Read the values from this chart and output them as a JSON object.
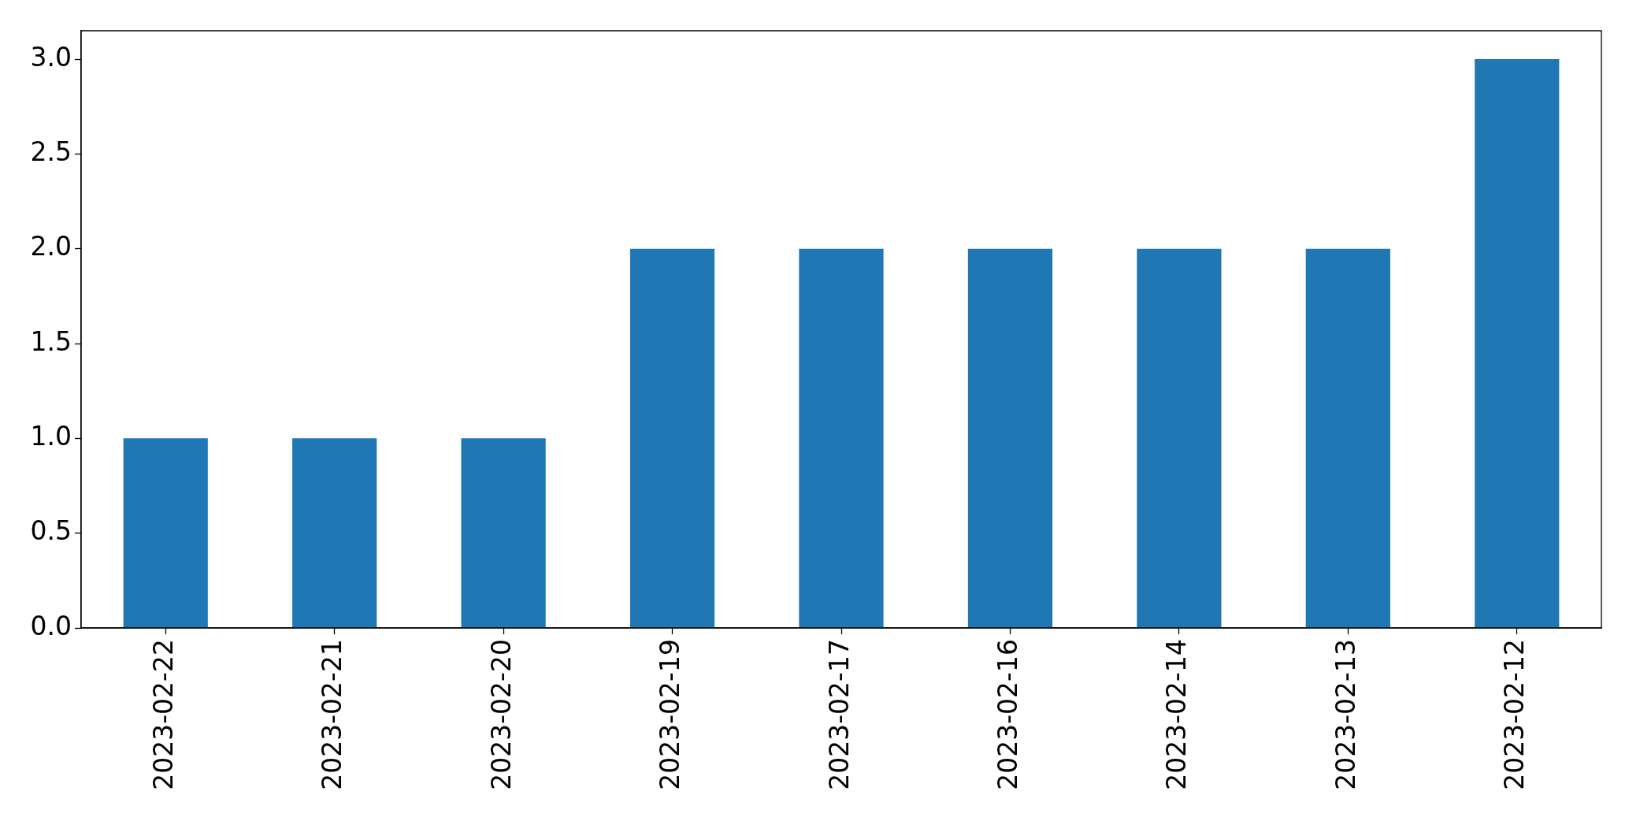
{
  "chart_data": {
    "type": "bar",
    "categories": [
      "2023-02-22",
      "2023-02-21",
      "2023-02-20",
      "2023-02-19",
      "2023-02-17",
      "2023-02-16",
      "2023-02-14",
      "2023-02-13",
      "2023-02-12"
    ],
    "values": [
      1,
      1,
      1,
      2,
      2,
      2,
      2,
      2,
      3
    ],
    "color": "#1f77b4",
    "ylim": [
      0,
      3.15
    ],
    "yticks": [
      {
        "value": 0,
        "label": "0.0"
      },
      {
        "value": 0.5,
        "label": "0.5"
      },
      {
        "value": 1,
        "label": "1.0"
      },
      {
        "value": 1.5,
        "label": "1.5"
      },
      {
        "value": 2,
        "label": "2.0"
      },
      {
        "value": 2.5,
        "label": "2.5"
      },
      {
        "value": 3,
        "label": "3.0"
      }
    ]
  }
}
